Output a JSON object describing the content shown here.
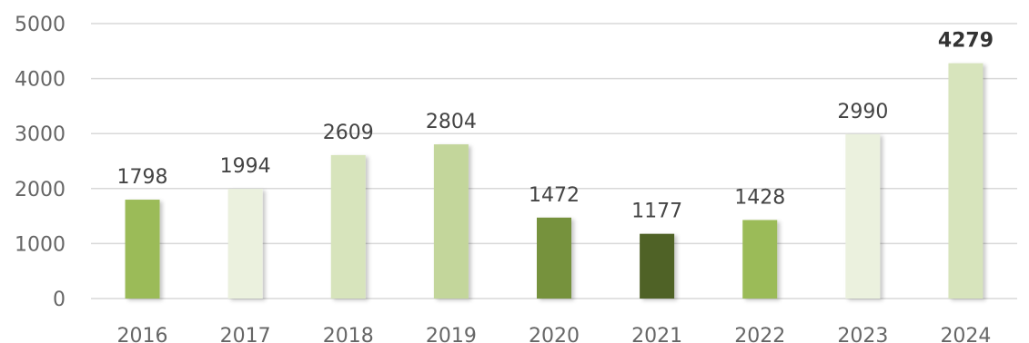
{
  "chart_data": {
    "type": "bar",
    "title": "",
    "xlabel": "",
    "ylabel": "",
    "categories": [
      "2016",
      "2017",
      "2018",
      "2019",
      "2020",
      "2021",
      "2022",
      "2023",
      "2024"
    ],
    "values": [
      1798,
      1994,
      2609,
      2804,
      1472,
      1177,
      1428,
      2990,
      4279
    ],
    "value_labels": [
      "1798",
      "1994",
      "2609",
      "2804",
      "1472",
      "1177",
      "1428",
      "2990",
      "4279"
    ],
    "bar_colors": [
      "#9bbb59",
      "#ebf1de",
      "#d7e4bc",
      "#c3d69b",
      "#76923c",
      "#4f6228",
      "#9bbb59",
      "#ebf1de",
      "#d7e4bc"
    ],
    "highlight_index": 8,
    "ylim": [
      0,
      5000
    ],
    "yticks": [
      "0",
      "1000",
      "2000",
      "3000",
      "4000",
      "5000"
    ],
    "ytick_values": [
      0,
      1000,
      2000,
      3000,
      4000,
      5000
    ],
    "grid": true,
    "legend": "none"
  }
}
